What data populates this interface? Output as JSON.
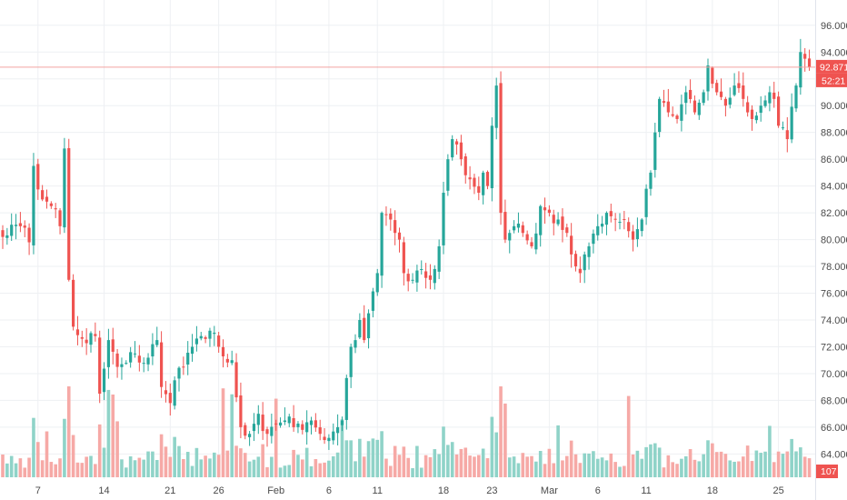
{
  "chart_data": {
    "type": "candlestick",
    "grid": true,
    "colors": {
      "up": "#26a69a",
      "down": "#ef5350",
      "volume_up": "#8fd3c8",
      "volume_down": "#f6a9a6",
      "grid": "#eef0f3",
      "price_line": "#f2a3a0",
      "badge": "#ef5350",
      "axis_text": "#4a4a4a"
    },
    "y_axis": {
      "position": "right",
      "range": [
        62.6,
        96.8
      ],
      "ticks": [
        "96.000",
        "94.000",
        "92.000",
        "90.000",
        "88.000",
        "86.000",
        "84.000",
        "82.000",
        "80.000",
        "78.000",
        "76.000",
        "74.000",
        "72.000",
        "70.000",
        "68.000",
        "66.000",
        "64.000"
      ]
    },
    "x_axis": {
      "ticks": [
        {
          "label": "7",
          "index": 8
        },
        {
          "label": "14",
          "index": 23
        },
        {
          "label": "21",
          "index": 38
        },
        {
          "label": "26",
          "index": 49
        },
        {
          "label": "Feb",
          "index": 62
        },
        {
          "label": "6",
          "index": 74
        },
        {
          "label": "11",
          "index": 85
        },
        {
          "label": "18",
          "index": 100
        },
        {
          "label": "23",
          "index": 111
        },
        {
          "label": "Mar",
          "index": 124
        },
        {
          "label": "6",
          "index": 135
        },
        {
          "label": "11",
          "index": 146
        },
        {
          "label": "18",
          "index": 161
        },
        {
          "label": "25",
          "index": 176
        }
      ]
    },
    "last_price": {
      "value": 92.871,
      "label": "92.871",
      "countdown": "52:21"
    },
    "volume_label": "107",
    "close_path": [
      [
        0,
        80.2
      ],
      [
        4,
        81.0
      ],
      [
        6,
        79.8
      ],
      [
        7,
        85.5
      ],
      [
        9,
        83.0
      ],
      [
        11,
        82.5
      ],
      [
        13,
        81.0
      ],
      [
        14,
        86.8
      ],
      [
        15,
        77.0
      ],
      [
        16,
        73.5
      ],
      [
        18,
        72.6
      ],
      [
        21,
        72.8
      ],
      [
        22,
        68.5
      ],
      [
        24,
        72.5
      ],
      [
        26,
        70.5
      ],
      [
        28,
        70.8
      ],
      [
        30,
        71.5
      ],
      [
        32,
        70.8
      ],
      [
        35,
        72.5
      ],
      [
        36,
        69.0
      ],
      [
        38,
        67.8
      ],
      [
        39,
        69.5
      ],
      [
        41,
        70.5
      ],
      [
        43,
        72.0
      ],
      [
        45,
        72.8
      ],
      [
        47,
        73.2
      ],
      [
        49,
        72.0
      ],
      [
        52,
        71.0
      ],
      [
        54,
        66.0
      ],
      [
        56,
        65.5
      ],
      [
        58,
        67.0
      ],
      [
        60,
        65.5
      ],
      [
        62,
        66.2
      ],
      [
        64,
        66.5
      ],
      [
        66,
        66.0
      ],
      [
        68,
        65.8
      ],
      [
        70,
        66.5
      ],
      [
        72,
        65.5
      ],
      [
        74,
        65.2
      ],
      [
        76,
        66.0
      ],
      [
        77,
        66.5
      ],
      [
        79,
        72.0
      ],
      [
        81,
        74.0
      ],
      [
        82,
        72.5
      ],
      [
        83,
        74.5
      ],
      [
        85,
        77.5
      ],
      [
        86,
        82.0
      ],
      [
        88,
        81.5
      ],
      [
        89,
        80.5
      ],
      [
        90,
        80.0
      ],
      [
        91,
        77.5
      ],
      [
        93,
        77.0
      ],
      [
        95,
        77.8
      ],
      [
        97,
        77.0
      ],
      [
        99,
        79.5
      ],
      [
        100,
        83.5
      ],
      [
        101,
        86.0
      ],
      [
        102,
        87.5
      ],
      [
        104,
        86.0
      ],
      [
        106,
        84.5
      ],
      [
        108,
        83.5
      ],
      [
        109,
        85.0
      ],
      [
        110,
        84.0
      ],
      [
        111,
        88.5
      ],
      [
        112,
        91.5
      ],
      [
        113,
        82.0
      ],
      [
        114,
        80.0
      ],
      [
        116,
        81.0
      ],
      [
        118,
        80.5
      ],
      [
        120,
        79.5
      ],
      [
        122,
        82.5
      ],
      [
        124,
        82.0
      ],
      [
        126,
        81.5
      ],
      [
        128,
        80.5
      ],
      [
        130,
        78.0
      ],
      [
        131,
        77.5
      ],
      [
        133,
        79.5
      ],
      [
        135,
        81.0
      ],
      [
        137,
        82.0
      ],
      [
        139,
        81.5
      ],
      [
        141,
        81.5
      ],
      [
        143,
        80.0
      ],
      [
        145,
        81.5
      ],
      [
        147,
        85.0
      ],
      [
        148,
        88.0
      ],
      [
        149,
        90.5
      ],
      [
        151,
        89.5
      ],
      [
        153,
        89.0
      ],
      [
        155,
        91.0
      ],
      [
        157,
        89.5
      ],
      [
        159,
        91.0
      ],
      [
        160,
        93.0
      ],
      [
        162,
        91.0
      ],
      [
        164,
        90.0
      ],
      [
        166,
        91.5
      ],
      [
        168,
        90.5
      ],
      [
        170,
        89.0
      ],
      [
        172,
        90.0
      ],
      [
        174,
        91.0
      ],
      [
        175,
        90.5
      ],
      [
        176,
        88.5
      ],
      [
        178,
        87.5
      ],
      [
        180,
        91.5
      ],
      [
        181,
        94.0
      ],
      [
        182,
        93.5
      ],
      [
        183,
        92.871
      ]
    ]
  }
}
